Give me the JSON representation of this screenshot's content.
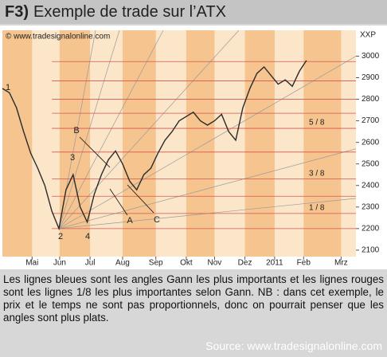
{
  "header": {
    "figure": "F3)",
    "title": "Exemple de trade sur l’ATX"
  },
  "chart_data": {
    "type": "line",
    "watermark": "© www.tradesignalonline.com",
    "y_axis_label": "XXP",
    "xlim": [
      0,
      50
    ],
    "xticks": [
      {
        "value": 4.2,
        "label": "Mai"
      },
      {
        "value": 8.1,
        "label": "Jun"
      },
      {
        "value": 12.4,
        "label": "Jul"
      },
      {
        "value": 17,
        "label": "Aug"
      },
      {
        "value": 21.7,
        "label": "Sep"
      },
      {
        "value": 26,
        "label": "Okt"
      },
      {
        "value": 30,
        "label": "Nov"
      },
      {
        "value": 34.3,
        "label": "Dez"
      },
      {
        "value": 38.5,
        "label": "2011"
      },
      {
        "value": 42.6,
        "label": "Feb"
      },
      {
        "value": 47.9,
        "label": "Mrz"
      }
    ],
    "ylim": [
      2070,
      3120
    ],
    "yticks": [
      2100,
      2200,
      2300,
      2400,
      2500,
      2600,
      2700,
      2800,
      2900,
      3000
    ],
    "series": [
      {
        "color": "#2b2b2b",
        "x": [
          0,
          1,
          2,
          3,
          4,
          5,
          6,
          7,
          8,
          9,
          10,
          11,
          12,
          13,
          14,
          15,
          16,
          17,
          18,
          19,
          20,
          21,
          22,
          23,
          24,
          25,
          26,
          27,
          28,
          29,
          30,
          31,
          32,
          33,
          34,
          35,
          36,
          37,
          38,
          39,
          40,
          41,
          42,
          43
        ],
        "values": [
          2850,
          2830,
          2760,
          2650,
          2550,
          2480,
          2400,
          2280,
          2200,
          2380,
          2450,
          2300,
          2230,
          2360,
          2450,
          2520,
          2560,
          2500,
          2420,
          2380,
          2450,
          2480,
          2550,
          2610,
          2650,
          2700,
          2720,
          2740,
          2700,
          2680,
          2700,
          2730,
          2650,
          2610,
          2760,
          2850,
          2920,
          2950,
          2910,
          2870,
          2890,
          2860,
          2930,
          2980
        ]
      }
    ],
    "gann_color": "#d9534f",
    "gann_levels": [
      2975,
      2885,
      2800,
      2735,
      2665,
      2555,
      2430,
      2350,
      2270,
      2200
    ],
    "gann_labels": [
      "5 / 8",
      "3 / 8",
      "1 / 8"
    ],
    "annotations": [
      "1",
      "2",
      "3",
      "4",
      "A",
      "B",
      "C"
    ]
  },
  "caption": "Les lignes bleues sont les angles Gann les plus importants et les lignes rouges sont les lignes 1/8 les plus importantes selon Gann. NB : dans cet exemple, le prix et le temps ne sont pas proportionnels, donc on pourrait penser que les angles sont plus plats.",
  "source": "Source: www.tradesignalonline.com"
}
